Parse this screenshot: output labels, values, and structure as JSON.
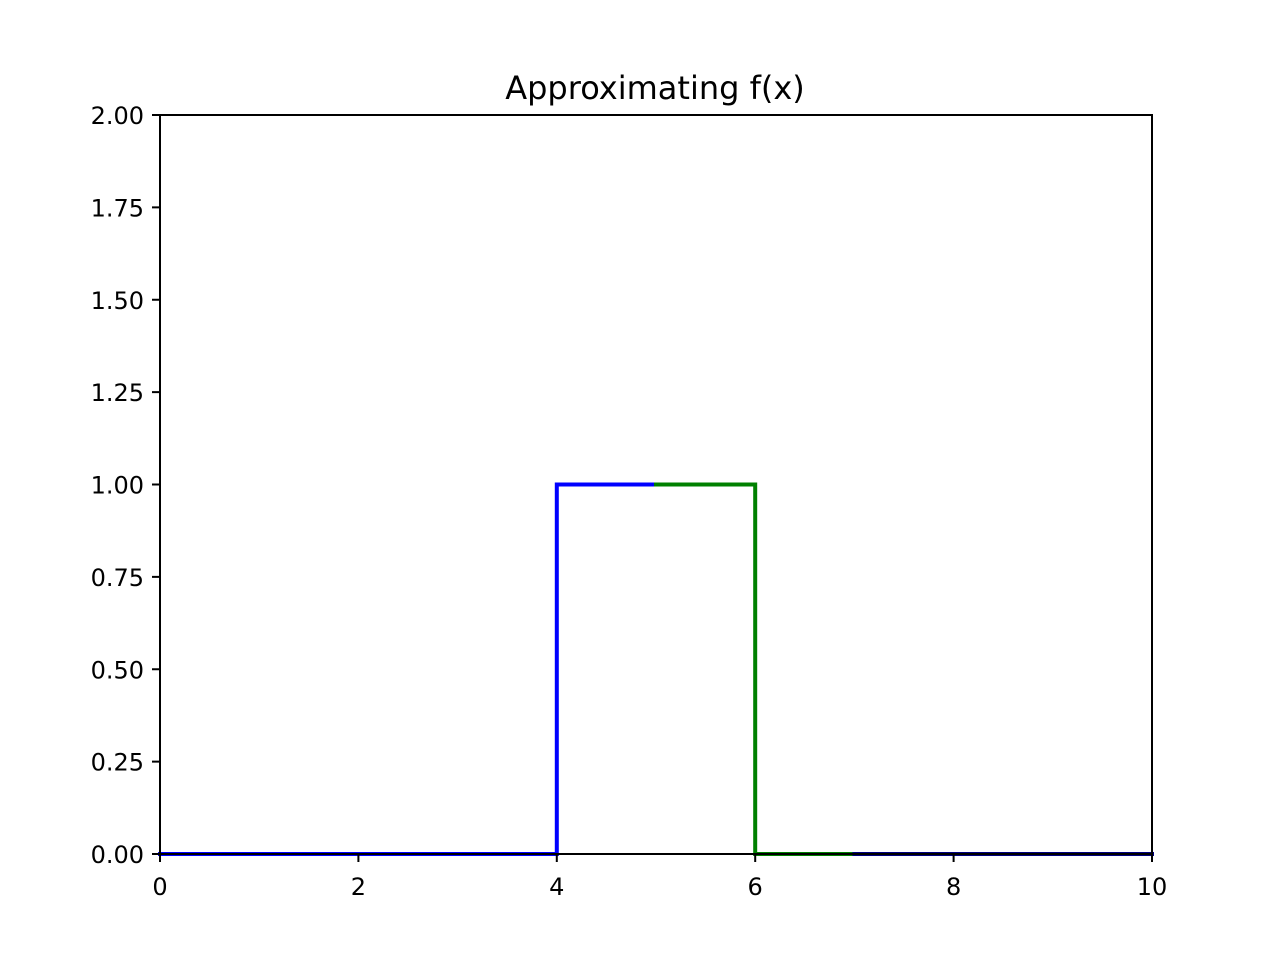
{
  "chart_data": {
    "type": "line",
    "title": "Approximating f(x)",
    "xlabel": "",
    "ylabel": "",
    "xlim": [
      0,
      10
    ],
    "ylim": [
      0,
      2
    ],
    "grid": false,
    "xticks": [
      0,
      2,
      4,
      6,
      8,
      10
    ],
    "xtick_labels": [
      "0",
      "2",
      "4",
      "6",
      "8",
      "10"
    ],
    "yticks": [
      0,
      0.25,
      0.5,
      0.75,
      1.0,
      1.25,
      1.5,
      1.75,
      2.0
    ],
    "ytick_labels": [
      "0.00",
      "0.25",
      "0.50",
      "0.75",
      "1.00",
      "1.25",
      "1.50",
      "1.75",
      "2.00"
    ],
    "series": [
      {
        "color": "#0000ff",
        "x": [
          0,
          4,
          4,
          5
        ],
        "y": [
          0,
          0,
          1,
          1
        ]
      },
      {
        "color": "#008000",
        "x": [
          5,
          6,
          6,
          7
        ],
        "y": [
          1,
          1,
          0,
          0
        ]
      },
      {
        "color": "#000080",
        "x": [
          7,
          10
        ],
        "y": [
          0,
          0
        ]
      }
    ]
  }
}
